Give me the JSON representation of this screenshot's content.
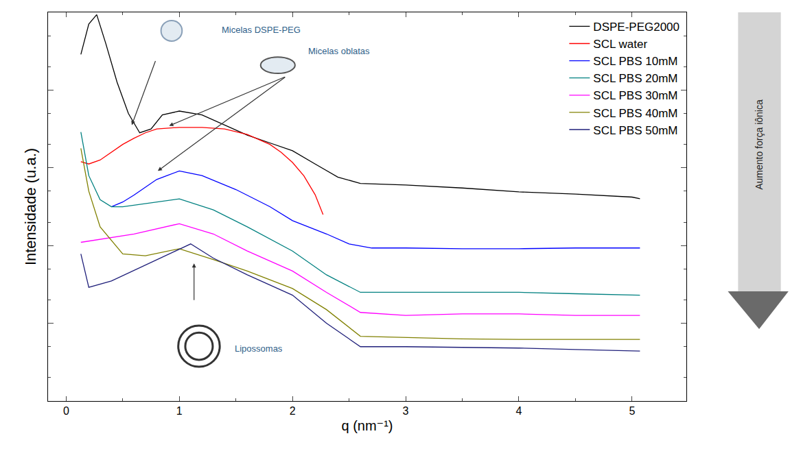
{
  "chart_data": {
    "type": "line",
    "x_label": "q (nm⁻¹)",
    "y_label": "Intensidade (u.a.)",
    "log": "y",
    "grid": false,
    "legend": "upper right",
    "tick_labels": "x",
    "xlim": [
      -0.16,
      5.48
    ],
    "xticks": [
      0,
      1,
      2,
      3,
      4,
      5
    ],
    "ylim": [
      1,
      100000
    ],
    "yticks": [
      1,
      10,
      100,
      1000,
      10000,
      100000
    ],
    "annotations": [
      "Micelas DSPE-PEG",
      "Micelas oblatas",
      "Lipossomas",
      "Aumento força iônica"
    ],
    "series": [
      {
        "name": "DSPE-PEG2000",
        "color": "#000000",
        "x": [
          0.13,
          0.2,
          0.27,
          0.35,
          0.45,
          0.55,
          0.65,
          0.75,
          0.85,
          1.0,
          1.2,
          1.4,
          1.6,
          1.8,
          2.0,
          2.2,
          2.4,
          2.6,
          3.0,
          3.5,
          4.0,
          4.5,
          5.0,
          5.07
        ],
        "values": [
          28800,
          70800,
          93300,
          39800,
          12600,
          5000,
          2820,
          3160,
          4790,
          5370,
          4790,
          3550,
          2630,
          2090,
          1660,
          1120,
          760,
          630,
          600,
          550,
          490,
          460,
          420,
          400
        ]
      },
      {
        "name": "SCL water",
        "color": "#ff0000",
        "x": [
          0.13,
          0.2,
          0.3,
          0.4,
          0.5,
          0.6,
          0.7,
          0.8,
          1.0,
          1.2,
          1.4,
          1.6,
          1.8,
          1.9,
          2.0,
          2.1,
          2.2,
          2.27
        ],
        "values": [
          1200,
          1120,
          1260,
          1580,
          2000,
          2400,
          2820,
          3160,
          3310,
          3310,
          3160,
          2690,
          2000,
          1580,
          1170,
          790,
          450,
          250
        ]
      },
      {
        "name": "SCL PBS 10mM",
        "color": "#0000ff",
        "x": [
          0.4,
          0.5,
          0.6,
          0.8,
          1.0,
          1.2,
          1.5,
          1.8,
          2.0,
          2.3,
          2.5,
          2.7,
          3.0,
          3.5,
          4.0,
          4.5,
          5.0,
          5.07
        ],
        "values": [
          316,
          363,
          447,
          708,
          912,
          794,
          525,
          316,
          209,
          141,
          105,
          93,
          93,
          91,
          91,
          93,
          93,
          93
        ]
      },
      {
        "name": "SCL PBS 20mM",
        "color": "#008080",
        "x": [
          0.13,
          0.2,
          0.3,
          0.4,
          0.5,
          0.7,
          1.0,
          1.3,
          1.6,
          2.0,
          2.3,
          2.6,
          3.0,
          3.5,
          4.0,
          4.5,
          5.0,
          5.07
        ],
        "values": [
          2880,
          794,
          389,
          316,
          316,
          347,
          398,
          288,
          174,
          85,
          42,
          25,
          25,
          25,
          25,
          24,
          23,
          23
        ]
      },
      {
        "name": "SCL PBS 30mM",
        "color": "#ff00ff",
        "x": [
          0.13,
          0.3,
          0.6,
          1.0,
          1.3,
          1.6,
          2.0,
          2.3,
          2.6,
          3.0,
          3.5,
          4.0,
          4.5,
          5.0,
          5.07
        ],
        "values": [
          110,
          120,
          141,
          191,
          141,
          85,
          47,
          25,
          13.8,
          12.6,
          13.2,
          13.2,
          12.6,
          12.6,
          12.6
        ]
      },
      {
        "name": "SCL PBS 40mM",
        "color": "#808000",
        "x": [
          0.13,
          0.2,
          0.3,
          0.5,
          0.7,
          1.0,
          1.3,
          1.6,
          2.0,
          2.3,
          2.6,
          3.0,
          3.5,
          4.0,
          4.5,
          5.0,
          5.07
        ],
        "values": [
          1780,
          500,
          174,
          78,
          74,
          91,
          66,
          47,
          28,
          15,
          6.8,
          6.6,
          6.3,
          6.2,
          6.2,
          6.2,
          6.2
        ]
      },
      {
        "name": "SCL PBS 50mM",
        "color": "#1f1f7a",
        "x": [
          0.13,
          0.2,
          0.4,
          0.7,
          1.0,
          1.1,
          1.3,
          1.6,
          2.0,
          2.3,
          2.6,
          3.0,
          3.5,
          4.0,
          4.5,
          5.0,
          5.07
        ],
        "values": [
          78,
          29,
          35,
          56,
          91,
          105,
          69,
          42,
          23,
          10,
          5,
          5,
          4.9,
          4.8,
          4.6,
          4.4,
          4.4
        ]
      }
    ]
  }
}
